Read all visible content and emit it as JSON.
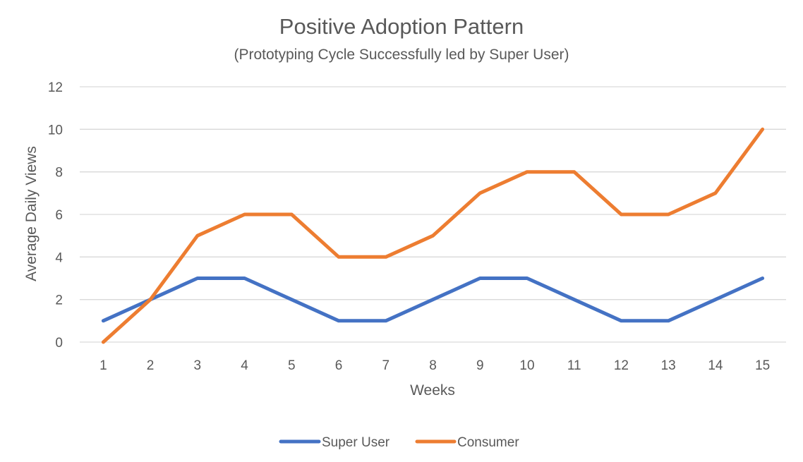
{
  "chart_data": {
    "type": "line",
    "title": "Positive Adoption Pattern",
    "subtitle": "(Prototyping Cycle Successfully led by Super User)",
    "xlabel": "Weeks",
    "ylabel": "Average Daily Views",
    "x": [
      1,
      2,
      3,
      4,
      5,
      6,
      7,
      8,
      9,
      10,
      11,
      12,
      13,
      14,
      15
    ],
    "ylim": [
      0,
      12
    ],
    "yticks": [
      0,
      2,
      4,
      6,
      8,
      10,
      12
    ],
    "grid": true,
    "legend_position": "bottom",
    "series": [
      {
        "name": "Super User",
        "color": "#4472c4",
        "values": [
          1,
          2,
          3,
          3,
          2,
          1,
          1,
          2,
          3,
          3,
          2,
          1,
          1,
          2,
          3
        ]
      },
      {
        "name": "Consumer",
        "color": "#ed7d31",
        "values": [
          0,
          2,
          5,
          6,
          6,
          4,
          4,
          5,
          7,
          8,
          8,
          6,
          6,
          7,
          10
        ]
      }
    ]
  }
}
